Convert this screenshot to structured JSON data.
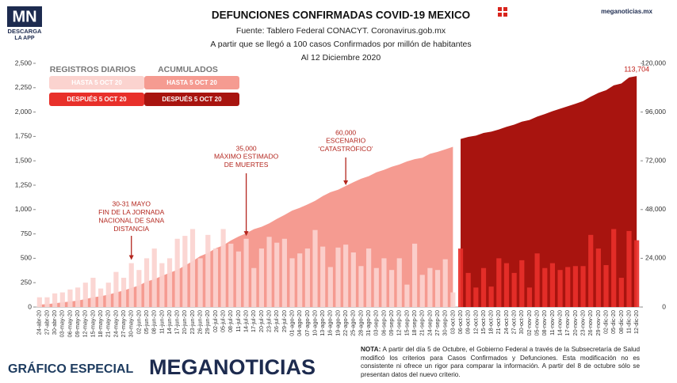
{
  "chart_data": {
    "type": "bar-area",
    "title": "DEFUNCIONES CONFIRMADAS COVID-19 MEXICO",
    "subtitle": [
      "Fuente: Tablero Federal CONACYT. Coronavirus.gob.mx",
      "A partir que se llegó a 100 casos Confirmados por millón de habitantes",
      "Al 12 Diciembre 2020"
    ],
    "logo": {
      "mark": "MN",
      "line1": "DESCARGA",
      "line2": "LA APP"
    },
    "site": "meganoticias.mx",
    "footer": {
      "label": "GRÁFICO ESPECIAL",
      "brand": "MEGANOTICIAS"
    },
    "note": {
      "label": "NOTA:",
      "text": "A partir del día 5 de Octubre, el Gobierno Federal a través de la Subsecretaría de Salud modificó los criterios para Casos Confirmados y Defunciones. Esta modificación no es consistente ni ofrece un rigor para comparar la información. A partir del 8 de octubre sólo se presentan datos del nuevo criterio."
    },
    "legend_titles": [
      "REGISTROS DIARIOS",
      "ACUMULADOS"
    ],
    "categories": [
      "24-abr-20",
      "27-abr-20",
      "30-abr-20",
      "03-may-20",
      "06-may-20",
      "09-may-20",
      "12-may-20",
      "15-may-20",
      "18-may-20",
      "21-may-20",
      "24-may-20",
      "27-may-20",
      "30-may-20",
      "02-jun-20",
      "05-jun-20",
      "08-jun-20",
      "11-jun-20",
      "14-jun-20",
      "17-jun-20",
      "20-jun-20",
      "23-jun-20",
      "26-jun-20",
      "29-jun-20",
      "02-jul-20",
      "05-jul-20",
      "08-jul-20",
      "11-jul-20",
      "14-jul-20",
      "17-jul-20",
      "20-jul-20",
      "23-jul-20",
      "26-jul-20",
      "29-jul-20",
      "01-ago-20",
      "04-ago-20",
      "07-ago-20",
      "10-ago-20",
      "13-ago-20",
      "16-ago-20",
      "19-ago-20",
      "22-ago-20",
      "25-ago-20",
      "28-ago-20",
      "31-ago-20",
      "03-sep-20",
      "06-sep-20",
      "09-sep-20",
      "12-sep-20",
      "15-sep-20",
      "18-sep-20",
      "21-sep-20",
      "24-sep-20",
      "27-sep-20",
      "30-sep-20",
      "03-oct-20",
      "06-oct-20",
      "09-oct-20",
      "12-oct-20",
      "15-oct-20",
      "18-oct-20",
      "21-oct-20",
      "24-oct-20",
      "27-oct-20",
      "30-oct-20",
      "02-nov-20",
      "05-nov-20",
      "08-nov-20",
      "11-nov-20",
      "14-nov-20",
      "17-nov-20",
      "20-nov-20",
      "23-nov-20",
      "26-nov-20",
      "29-nov-20",
      "02-dic-20",
      "05-dic-20",
      "08-dic-20",
      "11-dic-20",
      "12-dic-20"
    ],
    "series": [
      {
        "name": "HASTA 5 OCT 20",
        "color": "#fbd3cf",
        "axis": "y",
        "values": [
          100,
          100,
          140,
          150,
          180,
          200,
          250,
          300,
          190,
          250,
          360,
          300,
          450,
          380,
          500,
          600,
          450,
          500,
          700,
          730,
          800,
          500,
          740,
          600,
          800,
          650,
          570,
          700,
          400,
          600,
          720,
          660,
          700,
          500,
          550,
          600,
          790,
          620,
          410,
          610,
          640,
          560,
          420,
          600,
          400,
          500,
          380,
          500,
          230,
          650,
          330,
          400,
          380,
          490,
          150,
          null,
          null,
          null,
          null,
          null,
          null,
          null,
          null,
          null,
          null,
          null,
          null,
          null,
          null,
          null,
          null,
          null,
          null,
          null,
          null,
          null,
          null,
          null,
          null
        ]
      },
      {
        "name": "DESPUÉS 5 OCT 20",
        "color": "#e8302a",
        "axis": "y",
        "values": [
          null,
          null,
          null,
          null,
          null,
          null,
          null,
          null,
          null,
          null,
          null,
          null,
          null,
          null,
          null,
          null,
          null,
          null,
          null,
          null,
          null,
          null,
          null,
          null,
          null,
          null,
          null,
          null,
          null,
          null,
          null,
          null,
          null,
          null,
          null,
          null,
          null,
          null,
          null,
          null,
          null,
          null,
          null,
          null,
          null,
          null,
          null,
          null,
          null,
          null,
          null,
          null,
          null,
          null,
          null,
          600,
          350,
          200,
          400,
          210,
          500,
          450,
          350,
          480,
          200,
          550,
          400,
          450,
          380,
          410,
          420,
          420,
          740,
          600,
          430,
          800,
          300,
          780,
          685
        ]
      },
      {
        "name": "HASTA 5 OCT 20",
        "color": "#f59b91",
        "axis": "y2",
        "values": [
          1221,
          1434,
          1859,
          2271,
          2704,
          3160,
          3926,
          4767,
          5332,
          6090,
          7179,
          8134,
          9415,
          10637,
          12545,
          13699,
          15357,
          16872,
          18310,
          20394,
          22584,
          25060,
          26648,
          28861,
          30366,
          32796,
          34730,
          36327,
          38310,
          39485,
          41190,
          43374,
          45361,
          47472,
          48869,
          50517,
          52298,
          54666,
          56543,
          57774,
          59610,
          61450,
          63146,
          64414,
          66329,
          67558,
          69049,
          70183,
          71678,
          72803,
          73493,
          75439,
          76430,
          77646,
          78880,
          null,
          null,
          null,
          null,
          null,
          null,
          null,
          null,
          null,
          null,
          null,
          null,
          null,
          null,
          null,
          null,
          null,
          null,
          null,
          null,
          null,
          null,
          null,
          null
        ]
      },
      {
        "name": "DESPUÉS 5 OCT 20",
        "color": "#a8140f",
        "axis": "y2",
        "values": [
          null,
          null,
          null,
          null,
          null,
          null,
          null,
          null,
          null,
          null,
          null,
          null,
          null,
          null,
          null,
          null,
          null,
          null,
          null,
          null,
          null,
          null,
          null,
          null,
          null,
          null,
          null,
          null,
          null,
          null,
          null,
          null,
          null,
          null,
          null,
          null,
          null,
          null,
          null,
          null,
          null,
          null,
          null,
          null,
          null,
          null,
          null,
          null,
          null,
          null,
          null,
          null,
          null,
          null,
          null,
          82726,
          83781,
          84420,
          85704,
          86338,
          87415,
          88743,
          89814,
          91289,
          92100,
          93772,
          95027,
          96430,
          97624,
          98861,
          100104,
          101373,
          103597,
          105459,
          106765,
          109150,
          110074,
          113019,
          113704
        ],
        "value_labels": [
          null,
          null,
          null,
          null,
          null,
          null,
          null,
          null,
          null,
          null,
          null,
          null,
          null,
          null,
          null,
          null,
          null,
          null,
          null,
          null,
          null,
          null,
          null,
          null,
          null,
          null,
          null,
          null,
          null,
          null,
          null,
          null,
          null,
          null,
          null,
          null,
          null,
          null,
          null,
          null,
          null,
          null,
          null,
          null,
          null,
          null,
          null,
          null,
          null,
          null,
          null,
          null,
          null,
          null,
          null,
          null,
          null,
          null,
          null,
          null,
          null,
          null,
          null,
          null,
          null,
          null,
          null,
          null,
          null,
          null,
          null,
          null,
          null,
          null,
          null,
          null,
          null,
          null,
          "113,704"
        ]
      }
    ],
    "ylim": [
      0,
      2500
    ],
    "yticks": [
      0,
      {
        "value": 250,
        "label": "250"
      },
      500,
      750,
      {
        "value": 1000,
        "label": "1,000"
      },
      {
        "value": 1250,
        "label": "1,250"
      },
      {
        "value": 1500,
        "label": "1,500"
      },
      {
        "value": 1750,
        "label": "1,750"
      },
      {
        "value": 2000,
        "label": "2,000"
      },
      {
        "value": 2250,
        "label": "2,250"
      },
      {
        "value": 2500,
        "label": "2,500"
      }
    ],
    "y2lim": [
      0,
      120000
    ],
    "y2ticks": [
      0,
      {
        "value": 24000,
        "label": "24,000"
      },
      {
        "value": 48000,
        "label": "48,000"
      },
      {
        "value": 72000,
        "label": "72,000"
      },
      {
        "value": 96000,
        "label": "96,000"
      },
      {
        "value": 120000,
        "label": "120,000"
      }
    ],
    "annotations": [
      {
        "x": "30-may-20",
        "text": [
          "30-31 MAYO",
          "FIN DE LA JORNADA",
          "NACIONAL DE SANA",
          "DISTANCIA"
        ]
      },
      {
        "x": "14-jul-20",
        "value": 35000,
        "label": "35,000",
        "text": [
          "MÁXIMO ESTIMADO",
          "DE MUERTES"
        ]
      },
      {
        "x": "22-ago-20",
        "value": 60000,
        "label": "60,000",
        "text": [
          "ESCENARIO",
          "‘CATASTRÓFICO’"
        ]
      }
    ]
  }
}
